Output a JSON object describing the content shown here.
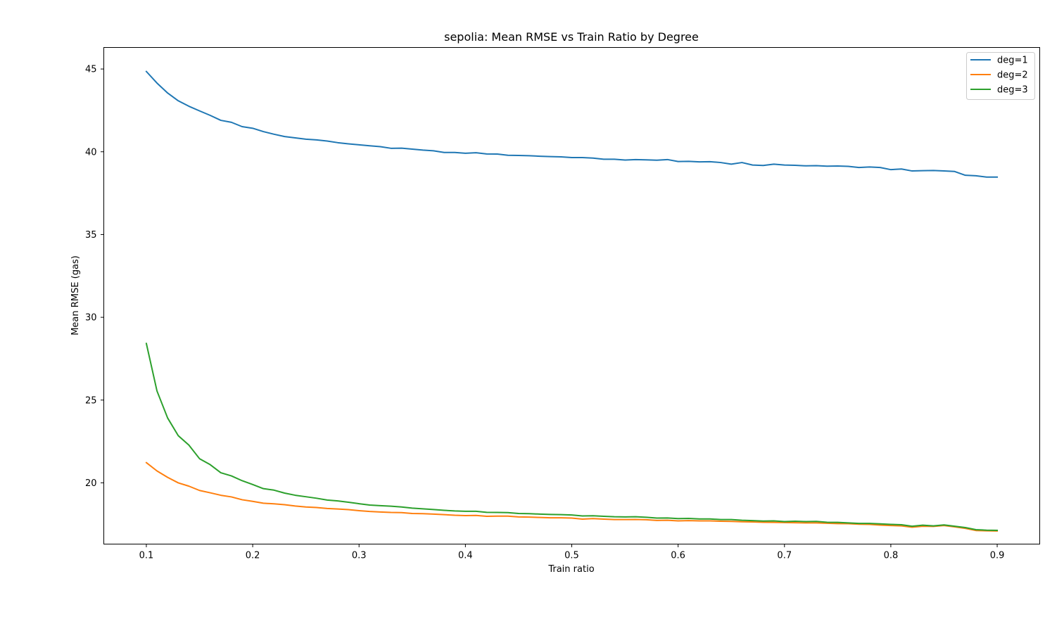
{
  "chart_data": {
    "type": "line",
    "title": "sepolia: Mean RMSE vs Train Ratio by Degree",
    "xlabel": "Train ratio",
    "ylabel": "Mean RMSE (gas)",
    "xlim": [
      0.06,
      0.94
    ],
    "ylim": [
      16.3,
      46.3
    ],
    "xticks": [
      0.1,
      0.2,
      0.3,
      0.4,
      0.5,
      0.6,
      0.7,
      0.8,
      0.9
    ],
    "xtick_labels": [
      "0.1",
      "0.2",
      "0.3",
      "0.4",
      "0.5",
      "0.6",
      "0.7",
      "0.8",
      "0.9"
    ],
    "yticks": [
      20,
      25,
      30,
      35,
      40,
      45
    ],
    "ytick_labels": [
      "20",
      "25",
      "30",
      "35",
      "40",
      "45"
    ],
    "grid": false,
    "legend_position": "top-right",
    "x": [
      0.1,
      0.11,
      0.12,
      0.13,
      0.14,
      0.15,
      0.16,
      0.17,
      0.18,
      0.19,
      0.2,
      0.21,
      0.22,
      0.23,
      0.24,
      0.25,
      0.26,
      0.27,
      0.28,
      0.29,
      0.3,
      0.31,
      0.32,
      0.33,
      0.34,
      0.35,
      0.36,
      0.37,
      0.38,
      0.39,
      0.4,
      0.41,
      0.42,
      0.43,
      0.44,
      0.45,
      0.46,
      0.47,
      0.48,
      0.49,
      0.5,
      0.51,
      0.52,
      0.53,
      0.54,
      0.55,
      0.56,
      0.57,
      0.58,
      0.59,
      0.6,
      0.61,
      0.62,
      0.63,
      0.64,
      0.65,
      0.66,
      0.67,
      0.68,
      0.69,
      0.7,
      0.71,
      0.72,
      0.73,
      0.74,
      0.75,
      0.76,
      0.77,
      0.78,
      0.79,
      0.8,
      0.81,
      0.82,
      0.83,
      0.84,
      0.85,
      0.86,
      0.87,
      0.88,
      0.89,
      0.9
    ],
    "series": [
      {
        "name": "deg=1",
        "color": "#1f77b4",
        "values": [
          44.85,
          44.15,
          43.55,
          43.08,
          42.75,
          42.47,
          42.2,
          41.9,
          41.78,
          41.52,
          41.42,
          41.22,
          41.06,
          40.92,
          40.84,
          40.76,
          40.72,
          40.65,
          40.55,
          40.48,
          40.42,
          40.36,
          40.31,
          40.21,
          40.22,
          40.16,
          40.1,
          40.06,
          39.96,
          39.96,
          39.91,
          39.94,
          39.87,
          39.86,
          39.79,
          39.78,
          39.76,
          39.73,
          39.71,
          39.69,
          39.65,
          39.65,
          39.62,
          39.55,
          39.55,
          39.5,
          39.53,
          39.51,
          39.49,
          39.53,
          39.41,
          39.42,
          39.39,
          39.4,
          39.35,
          39.25,
          39.35,
          39.2,
          39.17,
          39.25,
          39.2,
          39.18,
          39.15,
          39.16,
          39.13,
          39.14,
          39.12,
          39.05,
          39.08,
          39.05,
          38.92,
          38.96,
          38.84,
          38.86,
          38.87,
          38.84,
          38.81,
          38.58,
          38.55,
          38.47,
          38.47
        ]
      },
      {
        "name": "deg=2",
        "color": "#ff7f0e",
        "values": [
          21.22,
          20.72,
          20.33,
          20.0,
          19.8,
          19.54,
          19.4,
          19.25,
          19.15,
          18.98,
          18.88,
          18.77,
          18.73,
          18.68,
          18.6,
          18.54,
          18.51,
          18.45,
          18.42,
          18.38,
          18.32,
          18.27,
          18.24,
          18.21,
          18.2,
          18.15,
          18.14,
          18.11,
          18.08,
          18.04,
          18.02,
          18.03,
          17.98,
          17.99,
          17.99,
          17.94,
          17.93,
          17.91,
          17.89,
          17.89,
          17.87,
          17.81,
          17.84,
          17.81,
          17.78,
          17.78,
          17.79,
          17.77,
          17.73,
          17.74,
          17.7,
          17.72,
          17.7,
          17.7,
          17.68,
          17.67,
          17.65,
          17.64,
          17.62,
          17.61,
          17.6,
          17.59,
          17.58,
          17.58,
          17.56,
          17.54,
          17.53,
          17.5,
          17.49,
          17.45,
          17.42,
          17.4,
          17.32,
          17.38,
          17.37,
          17.42,
          17.34,
          17.25,
          17.12,
          17.1,
          17.09
        ]
      },
      {
        "name": "deg=3",
        "color": "#2ca02c",
        "values": [
          28.42,
          25.55,
          23.92,
          22.85,
          22.28,
          21.46,
          21.1,
          20.61,
          20.42,
          20.13,
          19.9,
          19.65,
          19.56,
          19.38,
          19.25,
          19.16,
          19.07,
          18.96,
          18.91,
          18.83,
          18.74,
          18.66,
          18.62,
          18.59,
          18.54,
          18.47,
          18.43,
          18.39,
          18.34,
          18.3,
          18.28,
          18.28,
          18.22,
          18.21,
          18.2,
          18.15,
          18.14,
          18.11,
          18.09,
          18.08,
          18.06,
          18.0,
          18.01,
          17.98,
          17.95,
          17.94,
          17.95,
          17.92,
          17.87,
          17.88,
          17.84,
          17.85,
          17.82,
          17.82,
          17.78,
          17.78,
          17.74,
          17.72,
          17.69,
          17.7,
          17.66,
          17.68,
          17.66,
          17.67,
          17.62,
          17.61,
          17.58,
          17.55,
          17.55,
          17.52,
          17.49,
          17.47,
          17.38,
          17.44,
          17.4,
          17.46,
          17.38,
          17.3,
          17.17,
          17.14,
          17.13
        ]
      }
    ]
  }
}
